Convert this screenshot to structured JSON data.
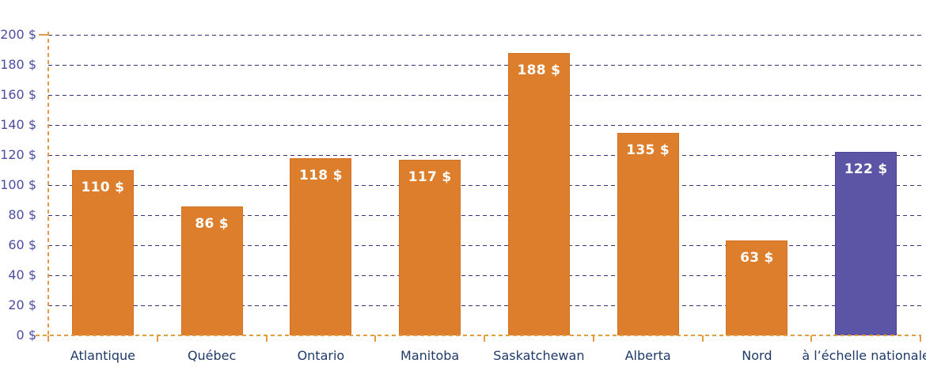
{
  "chart_data": {
    "type": "bar",
    "title": "",
    "xlabel": "",
    "ylabel": "",
    "categories": [
      "Atlantique",
      "Québec",
      "Ontario",
      "Manitoba",
      "Saskatchewan",
      "Alberta",
      "Nord",
      "à l’échelle nationale"
    ],
    "values": [
      110,
      86,
      118,
      117,
      188,
      135,
      63,
      122
    ],
    "value_labels": [
      "110 $",
      "86 $",
      "118 $",
      "117 $",
      "188 $",
      "135 $",
      "63 $",
      "122 $"
    ],
    "y_tick_values": [
      0,
      20,
      40,
      60,
      80,
      100,
      120,
      140,
      160,
      180,
      200
    ],
    "y_tick_labels": [
      "0 $",
      "20 $",
      "40 $",
      "60 $",
      "80 $",
      "100 $",
      "120 $",
      "140 $",
      "160 $",
      "180 $",
      "200 $"
    ],
    "ylim": [
      0,
      200
    ],
    "y_step": 20,
    "grid": "horizontal dashed",
    "legend": "none",
    "bar_colors": [
      "#dd7e2d",
      "#dd7e2d",
      "#dd7e2d",
      "#dd7e2d",
      "#dd7e2d",
      "#dd7e2d",
      "#dd7e2d",
      "#5c55a6"
    ],
    "colors": {
      "bar_default": "#dd7e2d",
      "bar_default_border": "#d07323",
      "bar_highlight": "#5c55a6",
      "bar_highlight_border": "#4c4596",
      "gridline": "#32327e",
      "axis": "#e59b41",
      "y_tick_text": "#4d4da3",
      "x_tick_text": "#1f3a68",
      "value_label_text": "#ffffff",
      "background": "#ffffff"
    }
  }
}
